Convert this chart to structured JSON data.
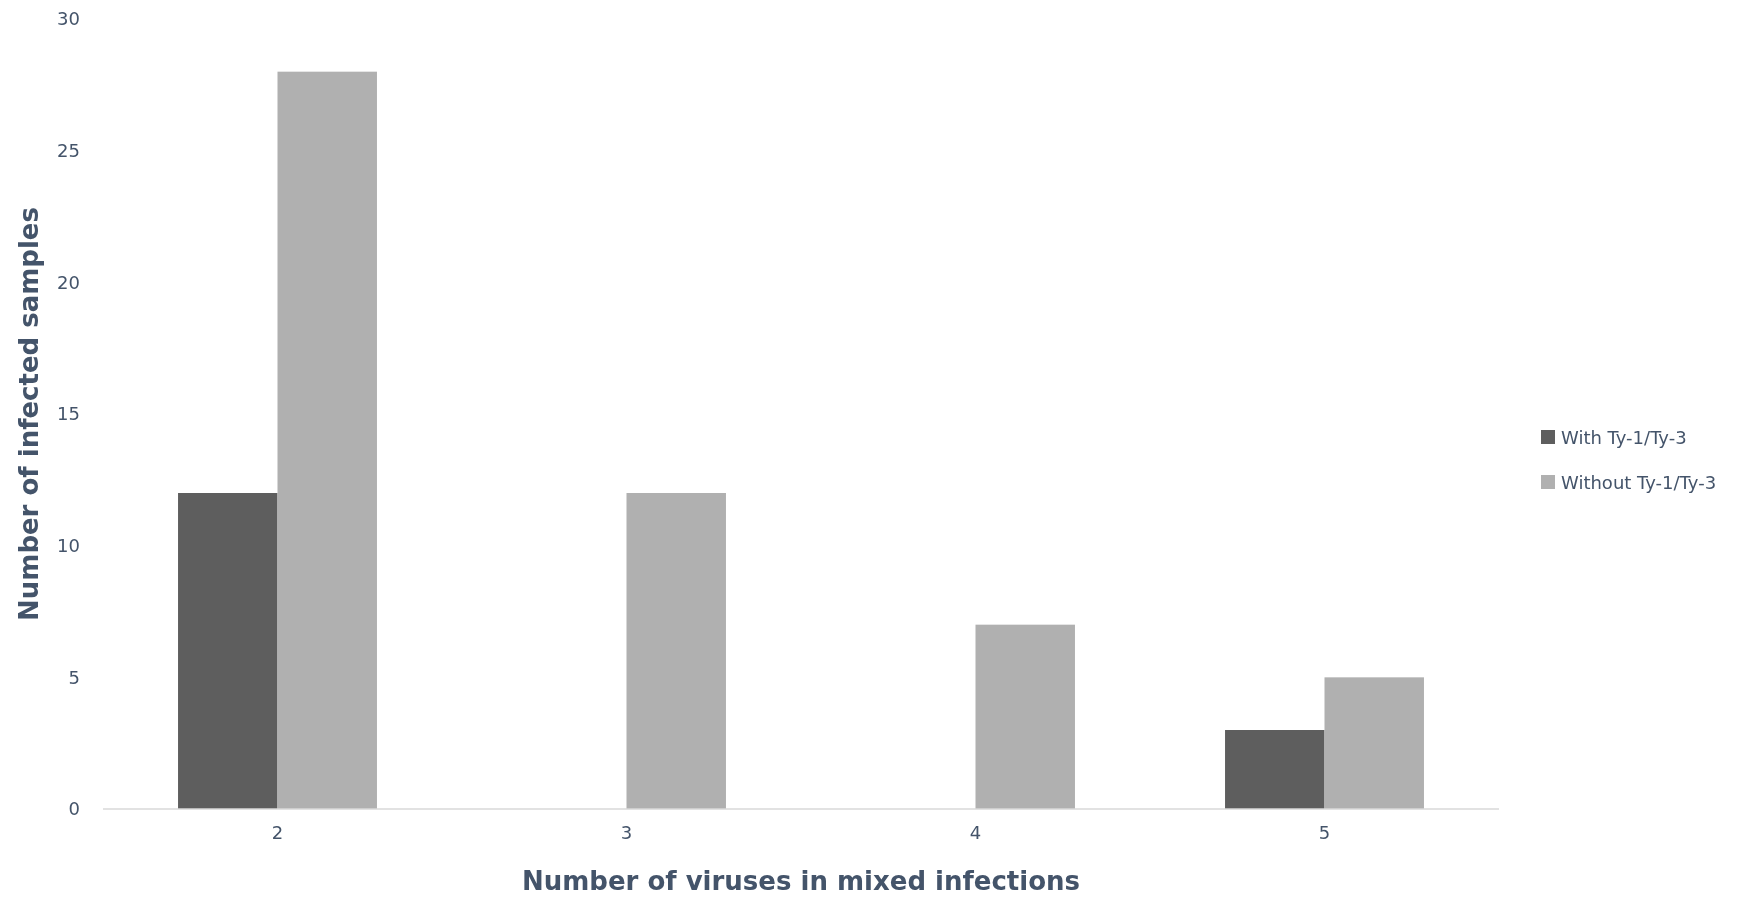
{
  "chart_data": {
    "type": "bar",
    "xlabel": "Number of viruses in mixed infections",
    "ylabel": "Number of infected samples",
    "categories": [
      "2",
      "3",
      "4",
      "5"
    ],
    "series": [
      {
        "name": "With Ty-1/Ty-3",
        "color": "#5e5e5e",
        "values": [
          12,
          0,
          0,
          3
        ]
      },
      {
        "name": "Without Ty-1/Ty-3",
        "color": "#b0b0b0",
        "values": [
          28,
          12,
          7,
          5
        ]
      }
    ],
    "ylim": [
      0,
      30
    ],
    "yticks": [
      0,
      5,
      10,
      15,
      20,
      25,
      30
    ],
    "grid": false,
    "legend": "right"
  }
}
